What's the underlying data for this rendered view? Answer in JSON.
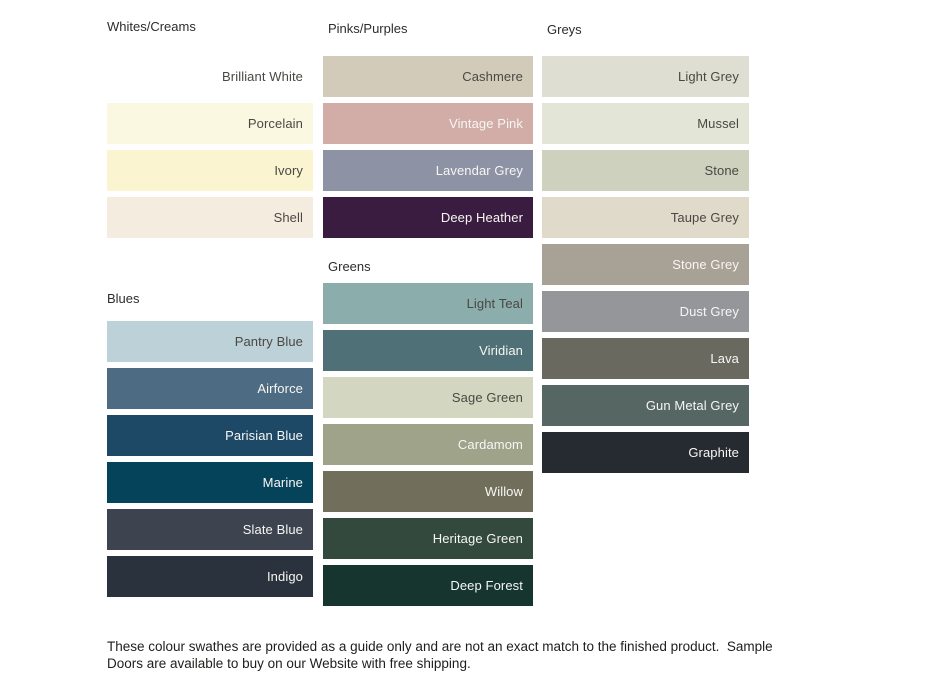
{
  "page": {
    "background": "#ffffff",
    "label_colors": {
      "dark": "#4a4843",
      "light": "#f7f6f3"
    }
  },
  "sections": [
    {
      "title": "Whites/Creams",
      "swatches": [
        {
          "name": "Brilliant White",
          "color": "#ffffff",
          "label": "dark"
        },
        {
          "name": "Porcelain",
          "color": "#fbf8e2",
          "label": "dark"
        },
        {
          "name": "Ivory",
          "color": "#faf4d1",
          "label": "dark"
        },
        {
          "name": "Shell",
          "color": "#f4eddf",
          "label": "dark"
        }
      ]
    },
    {
      "title": "Blues",
      "swatches": [
        {
          "name": "Pantry Blue",
          "color": "#bdd1d8",
          "label": "dark"
        },
        {
          "name": "Airforce",
          "color": "#4d6c83",
          "label": "light"
        },
        {
          "name": "Parisian Blue",
          "color": "#1d4966",
          "label": "light"
        },
        {
          "name": "Marine",
          "color": "#05435a",
          "label": "light"
        },
        {
          "name": "Slate Blue",
          "color": "#3d434f",
          "label": "light"
        },
        {
          "name": "Indigo",
          "color": "#2a323d",
          "label": "light"
        }
      ]
    },
    {
      "title": "Pinks/Purples",
      "swatches": [
        {
          "name": "Cashmere",
          "color": "#d2cbba",
          "label": "dark"
        },
        {
          "name": "Vintage Pink",
          "color": "#d2aca7",
          "label": "light"
        },
        {
          "name": "Lavendar Grey",
          "color": "#8d92a4",
          "label": "light"
        },
        {
          "name": "Deep Heather",
          "color": "#3a1c41",
          "label": "light"
        }
      ]
    },
    {
      "title": "Greens",
      "swatches": [
        {
          "name": "Light Teal",
          "color": "#8badab",
          "label": "dark"
        },
        {
          "name": "Viridian",
          "color": "#4f7076",
          "label": "light"
        },
        {
          "name": "Sage Green",
          "color": "#d3d7c1",
          "label": "dark"
        },
        {
          "name": "Cardamom",
          "color": "#9ea38a",
          "label": "light"
        },
        {
          "name": "Willow",
          "color": "#716f5b",
          "label": "light"
        },
        {
          "name": "Heritage Green",
          "color": "#33493d",
          "label": "light"
        },
        {
          "name": "Deep Forest",
          "color": "#16352f",
          "label": "light"
        }
      ]
    },
    {
      "title": "Greys",
      "swatches": [
        {
          "name": "Light Grey",
          "color": "#dedfd2",
          "label": "dark"
        },
        {
          "name": "Mussel",
          "color": "#e3e5d6",
          "label": "dark"
        },
        {
          "name": "Stone",
          "color": "#cfd1bf",
          "label": "dark"
        },
        {
          "name": "Taupe Grey",
          "color": "#e0dacb",
          "label": "dark"
        },
        {
          "name": "Stone Grey",
          "color": "#a8a196",
          "label": "light"
        },
        {
          "name": "Dust Grey",
          "color": "#95969a",
          "label": "light"
        },
        {
          "name": "Lava",
          "color": "#6a695f",
          "label": "light"
        },
        {
          "name": "Gun Metal Grey",
          "color": "#566763",
          "label": "light"
        },
        {
          "name": "Graphite",
          "color": "#262b31",
          "label": "light"
        }
      ]
    }
  ],
  "footer": {
    "lines": [
      "These colour swathes are provided as a guide only and are not an exact match to the finished product.  Sample",
      "Doors are available to buy on our Website with free shipping."
    ]
  }
}
